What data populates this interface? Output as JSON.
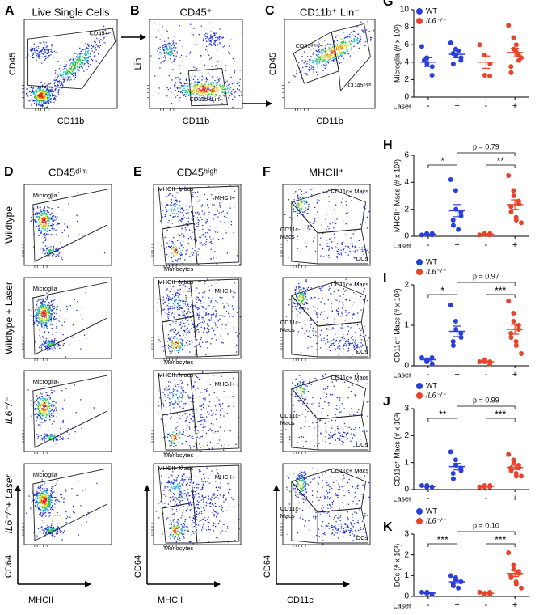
{
  "flow_panels": {
    "top": [
      {
        "letter": "A",
        "title": "Live Single Cells",
        "y_label": "CD45",
        "x_label": "CD11b",
        "gates": [
          "CD45+"
        ]
      },
      {
        "letter": "B",
        "title": "CD45⁺",
        "y_label": "Lin",
        "x_label": "CD11b",
        "gates": [
          "CD11b+Lin-"
        ]
      },
      {
        "letter": "C",
        "title": "CD11b⁺ Lin⁻",
        "y_label": "CD45",
        "x_label": "CD11b",
        "gates": [
          "CD45ᵈⁱᵐ",
          "CD45ʰⁱᵍʰ"
        ]
      }
    ],
    "columns": [
      {
        "letter": "D",
        "title": "CD45ᵈⁱᵐ",
        "y_label": "CD64",
        "x_label": "MHCII",
        "gates": [
          "Microglia"
        ]
      },
      {
        "letter": "E",
        "title": "CD45ʰⁱᵍʰ",
        "y_label": "CD64",
        "x_label": "MHCII",
        "gates": [
          "MHCII- Macs",
          "MHCII+",
          "Monocytes"
        ]
      },
      {
        "letter": "F",
        "title": "MHCII⁺",
        "y_label": "CD64",
        "x_label": "CD11c",
        "gates": [
          "CD11c+ Macs",
          [
            "CD11c-",
            "Macs"
          ],
          "DCs"
        ]
      }
    ],
    "rows": [
      "Wildtype",
      "Wildtype + Laser",
      "IL6⁻/⁻",
      "IL6⁻/⁻+ Laser"
    ]
  },
  "chart_data": [
    {
      "type": "dot",
      "letter": "G",
      "y_label": "Microglia (# x 10³)",
      "x_label": "Laser",
      "categories": [
        "-",
        "+"
      ],
      "ylim": [
        0,
        10
      ],
      "yticks": [
        0,
        2,
        4,
        6,
        8,
        10
      ],
      "legend": [
        "WT",
        "IL6⁻/⁻"
      ],
      "series": [
        {
          "color": "#2b3fd8",
          "groups": [
            {
              "values": [
                5.8,
                4.5,
                3.8,
                2.5,
                3.5,
                4.2
              ],
              "mean": 4.0,
              "sem": 0.5
            },
            {
              "values": [
                6.2,
                5.5,
                4.8,
                4.2,
                4.5,
                5.0,
                3.8,
                5.3
              ],
              "mean": 4.9,
              "sem": 0.4
            }
          ]
        },
        {
          "color": "#e8442c",
          "groups": [
            {
              "values": [
                6.0,
                4.8,
                2.5,
                2.4,
                3.8
              ],
              "mean": 4.0,
              "sem": 0.7
            },
            {
              "values": [
                8.2,
                6.8,
                5.5,
                4.8,
                4.2,
                3.5,
                2.8,
                5.2,
                6.0,
                4.5
              ],
              "mean": 5.1,
              "sem": 0.5
            }
          ]
        }
      ]
    },
    {
      "type": "dot",
      "letter": "H",
      "y_label": "MHCII⁺ Macs (# x 10³)",
      "x_label": "Laser",
      "categories": [
        "-",
        "+"
      ],
      "ylim": [
        0,
        6
      ],
      "yticks": [
        0,
        2,
        4,
        6
      ],
      "stars": [
        "*",
        "**"
      ],
      "p_label": "p = 0.79",
      "series": [
        {
          "color": "#2b3fd8",
          "groups": [
            {
              "values": [
                0.1,
                0.2,
                0.15,
                0.1,
                0.2
              ],
              "mean": 0.15,
              "sem": 0.02
            },
            {
              "values": [
                4.2,
                3.4,
                2.0,
                1.8,
                1.5,
                1.2,
                0.8,
                0.5
              ],
              "mean": 1.9,
              "sem": 0.45
            }
          ]
        },
        {
          "color": "#e8442c",
          "groups": [
            {
              "values": [
                0.1,
                0.2,
                0.15,
                0.1,
                0.2
              ],
              "mean": 0.15,
              "sem": 0.02
            },
            {
              "values": [
                4.5,
                3.4,
                3.0,
                2.6,
                2.4,
                2.2,
                1.8,
                1.4,
                1.2,
                1.0
              ],
              "mean": 2.35,
              "sem": 0.35
            }
          ]
        }
      ]
    },
    {
      "type": "dot",
      "letter": "I",
      "y_label": "CD11c⁻ Macs (# x 10³)",
      "x_label": "Laser",
      "categories": [
        "-",
        "+"
      ],
      "ylim": [
        0,
        2
      ],
      "yticks": [
        0,
        1,
        2
      ],
      "legend": [
        "WT",
        "IL6⁻/⁻"
      ],
      "stars": [
        "*",
        "***"
      ],
      "p_label": "p = 0.97",
      "series": [
        {
          "color": "#2b3fd8",
          "groups": [
            {
              "values": [
                0.2,
                0.1,
                0.15,
                0.2,
                0.05
              ],
              "mean": 0.15,
              "sem": 0.03
            },
            {
              "values": [
                1.5,
                1.1,
                0.9,
                0.8,
                0.7,
                0.6,
                0.5
              ],
              "mean": 0.85,
              "sem": 0.13
            }
          ]
        },
        {
          "color": "#e8442c",
          "groups": [
            {
              "values": [
                0.1,
                0.1,
                0.15,
                0.05,
                0.1
              ],
              "mean": 0.1,
              "sem": 0.02
            },
            {
              "values": [
                1.6,
                1.3,
                1.1,
                1.0,
                0.9,
                0.8,
                0.7,
                0.6,
                0.5,
                0.3
              ],
              "mean": 0.9,
              "sem": 0.12
            }
          ]
        }
      ]
    },
    {
      "type": "dot",
      "letter": "J",
      "y_label": "CD11c⁺ Macs (# x 10³)",
      "x_label": "Laser",
      "categories": [
        "-",
        "+"
      ],
      "ylim": [
        0,
        3
      ],
      "yticks": [
        0,
        1,
        2,
        3
      ],
      "legend": [
        "WT",
        "IL6⁻/⁻"
      ],
      "stars": [
        "**",
        "***"
      ],
      "p_label": "p = 0.99",
      "series": [
        {
          "color": "#2b3fd8",
          "groups": [
            {
              "values": [
                0.15,
                0.1,
                0.15,
                0.1
              ],
              "mean": 0.12,
              "sem": 0.01
            },
            {
              "values": [
                1.4,
                1.1,
                0.9,
                0.8,
                0.7,
                0.6,
                0.4
              ],
              "mean": 0.85,
              "sem": 0.12
            }
          ]
        },
        {
          "color": "#e8442c",
          "groups": [
            {
              "values": [
                0.1,
                0.15,
                0.1,
                0.1,
                0.15
              ],
              "mean": 0.12,
              "sem": 0.01
            },
            {
              "values": [
                1.3,
                1.1,
                1.0,
                0.9,
                0.8,
                0.8,
                0.7,
                0.6,
                0.5,
                0.5
              ],
              "mean": 0.82,
              "sem": 0.08
            }
          ]
        }
      ]
    },
    {
      "type": "dot",
      "letter": "K",
      "y_label": "DCs (# x 10³)",
      "x_label": "Laser",
      "categories": [
        "-",
        "+"
      ],
      "ylim": [
        0,
        3
      ],
      "yticks": [
        0,
        1,
        2,
        3
      ],
      "legend": [
        "WT",
        "IL6⁻/⁻"
      ],
      "stars": [
        "***",
        "***"
      ],
      "p_label": "p = 0.10",
      "series": [
        {
          "color": "#2b3fd8",
          "groups": [
            {
              "values": [
                0.2,
                0.15,
                0.2,
                0.1
              ],
              "mean": 0.16,
              "sem": 0.02
            },
            {
              "values": [
                1.0,
                0.9,
                0.8,
                0.7,
                0.7,
                0.6,
                0.5,
                0.4
              ],
              "mean": 0.7,
              "sem": 0.07
            }
          ]
        },
        {
          "color": "#e8442c",
          "groups": [
            {
              "values": [
                0.2,
                0.1,
                0.15,
                0.2,
                0.1
              ],
              "mean": 0.15,
              "sem": 0.02
            },
            {
              "values": [
                2.1,
                1.5,
                1.3,
                1.2,
                1.1,
                1.0,
                0.9,
                0.7,
                0.6,
                0.4
              ],
              "mean": 1.1,
              "sem": 0.15
            }
          ]
        }
      ]
    }
  ]
}
